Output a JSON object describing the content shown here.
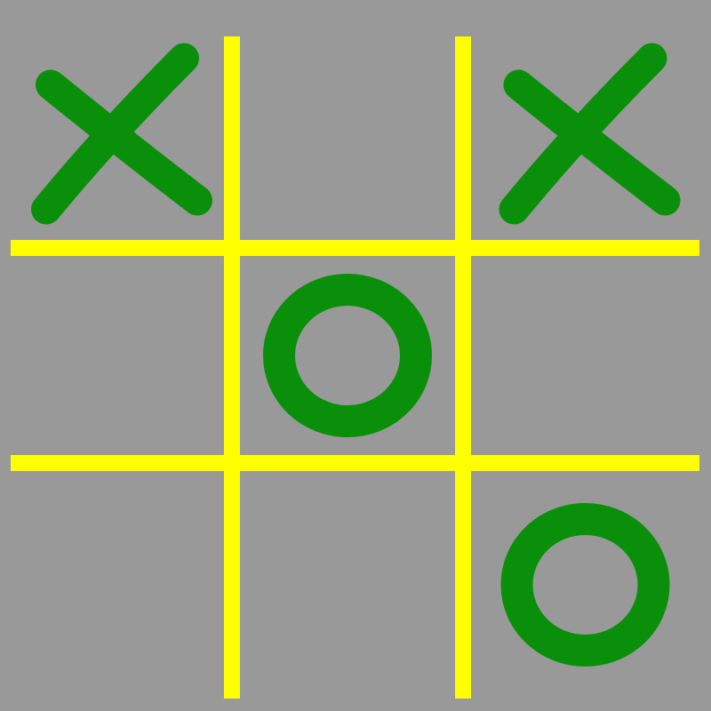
{
  "board": {
    "cells": [
      "X",
      "",
      "X",
      "",
      "O",
      "",
      "",
      "",
      "O"
    ]
  },
  "colors": {
    "background": "#999999",
    "grid": "#ffff00",
    "mark": "#0a8f0a"
  }
}
